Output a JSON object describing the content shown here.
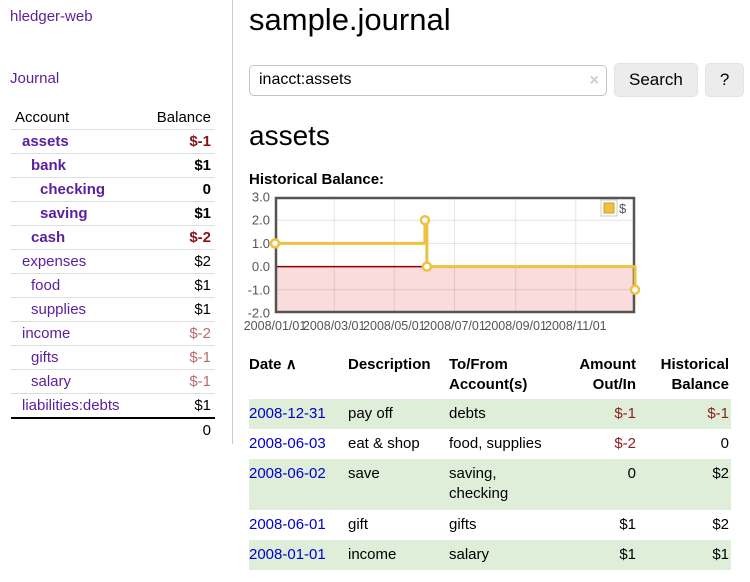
{
  "app": {
    "title": "hledger-web"
  },
  "colors": {
    "link_purple": "#5a1f9e",
    "link_blue": "#0000cc",
    "negative_strong": "#8b1313",
    "negative_muted": "#b96c6c",
    "register_negative": "#8b2020",
    "table_stripe_green": "#deeed8",
    "chart_line_gold": "#edc240",
    "chart_negative_fill": "#fbdcdc",
    "chart_zero_line": "#8b0000"
  },
  "sidebar": {
    "journal_link": "Journal",
    "accounts": {
      "headers": {
        "account": "Account",
        "balance": "Balance"
      },
      "rows": [
        {
          "name": "assets",
          "balance": "$-1"
        },
        {
          "name": "bank",
          "balance": "$1"
        },
        {
          "name": "checking",
          "balance": "0"
        },
        {
          "name": "saving",
          "balance": "$1"
        },
        {
          "name": "cash",
          "balance": "$-2"
        },
        {
          "name": "expenses",
          "balance": "$2"
        },
        {
          "name": "food",
          "balance": "$1"
        },
        {
          "name": "supplies",
          "balance": "$1"
        },
        {
          "name": "income",
          "balance": "$-2"
        },
        {
          "name": "gifts",
          "balance": "$-1"
        },
        {
          "name": "salary",
          "balance": "$-1"
        },
        {
          "name": "liabilities:debts",
          "balance": "$1"
        }
      ],
      "total": "0"
    }
  },
  "header": {
    "title": "sample.journal"
  },
  "search": {
    "query": "inacct:assets",
    "clear_icon": "×",
    "button_label": "Search",
    "help_label": "?"
  },
  "register": {
    "heading": "assets",
    "chart_label": "Historical Balance:",
    "table": {
      "headers": {
        "date": "Date",
        "sort_indicator": "∧",
        "description": "Description",
        "accounts": "To/From Account(s)",
        "amount": "Amount Out/In",
        "balance": "Historical Balance"
      },
      "rows": [
        {
          "date": "2008-12-31",
          "description": "pay off",
          "accounts": "debts",
          "amount": "$-1",
          "balance": "$-1"
        },
        {
          "date": "2008-06-03",
          "description": "eat & shop",
          "accounts": "food, supplies",
          "amount": "$-2",
          "balance": "0"
        },
        {
          "date": "2008-06-02",
          "description": "save",
          "accounts": "saving, checking",
          "amount": "0",
          "balance": "$2"
        },
        {
          "date": "2008-06-01",
          "description": "gift",
          "accounts": "gifts",
          "amount": "$1",
          "balance": "$2"
        },
        {
          "date": "2008-01-01",
          "description": "income",
          "accounts": "salary",
          "amount": "$1",
          "balance": "$1"
        }
      ]
    }
  },
  "chart_data": {
    "type": "line",
    "title": "Historical Balance",
    "step": true,
    "series": [
      {
        "name": "$",
        "color": "#edc240",
        "points": [
          {
            "date": "2008-01-01",
            "day": 0,
            "value": 1
          },
          {
            "date": "2008-06-01",
            "day": 152,
            "value": 2
          },
          {
            "date": "2008-06-03",
            "day": 154,
            "value": 0
          },
          {
            "date": "2008-12-31",
            "day": 365,
            "value": -1
          }
        ]
      }
    ],
    "x_ticks": [
      {
        "label": "2008/01/01",
        "day": 0
      },
      {
        "label": "2008/03/01",
        "day": 60
      },
      {
        "label": "2008/05/01",
        "day": 121
      },
      {
        "label": "2008/07/01",
        "day": 182
      },
      {
        "label": "2008/09/01",
        "day": 244
      },
      {
        "label": "2008/11/01",
        "day": 305
      }
    ],
    "y_ticks": [
      "3.0",
      "2.0",
      "1.0",
      "0.0",
      "-1.0",
      "-2.0"
    ],
    "ylim": [
      -2,
      3
    ],
    "x_range_days": [
      0,
      365
    ],
    "grid": true,
    "legend": {
      "label": "$",
      "position": "top-right"
    },
    "negative_region": true
  }
}
